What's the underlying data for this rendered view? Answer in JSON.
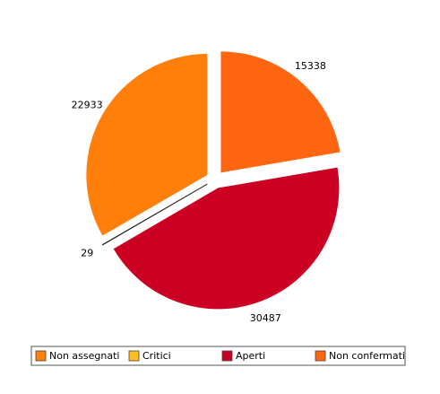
{
  "chart_data": {
    "type": "pie",
    "categories": [
      "Non assegnati",
      "Critici",
      "Aperti",
      "Non confermati"
    ],
    "values": [
      22933,
      29,
      30487,
      15338
    ],
    "colors": [
      "#ff7f0a",
      "#ffbb22",
      "#cc0022",
      "#ff6611"
    ]
  }
}
